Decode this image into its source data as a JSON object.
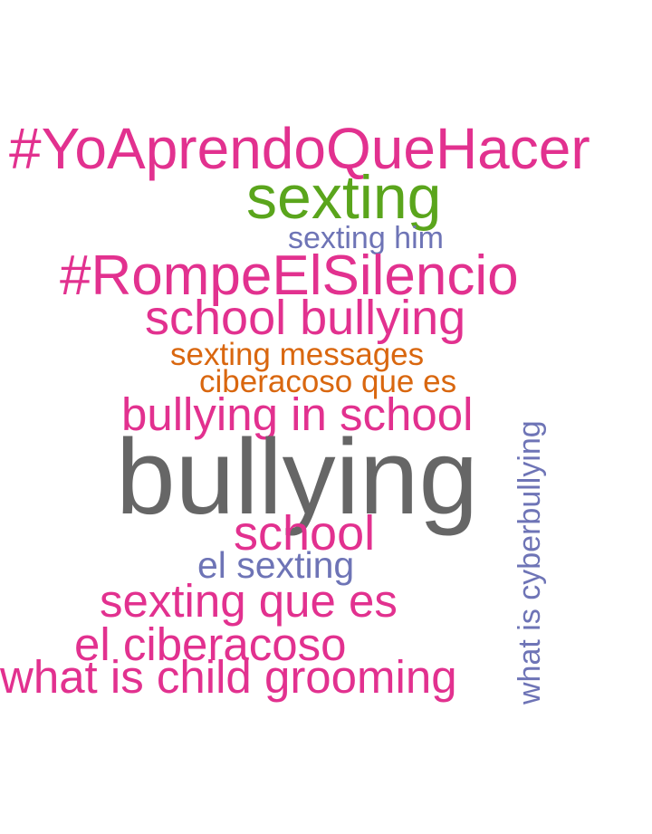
{
  "word_cloud": {
    "colors": {
      "pink": "#e2318f",
      "green": "#5aa51c",
      "slate": "#6e74b6",
      "orange": "#d9670f",
      "gray": "#666666"
    },
    "words": [
      {
        "text": "#YoAprendoQueHacer",
        "color": "#e2318f",
        "orientation": "horizontal"
      },
      {
        "text": "sexting",
        "color": "#5aa51c",
        "orientation": "horizontal"
      },
      {
        "text": "sexting him",
        "color": "#6e74b6",
        "orientation": "horizontal"
      },
      {
        "text": "#RompeElSilencio",
        "color": "#e2318f",
        "orientation": "horizontal"
      },
      {
        "text": "school bullying",
        "color": "#e2318f",
        "orientation": "horizontal"
      },
      {
        "text": "sexting messages",
        "color": "#d9670f",
        "orientation": "horizontal"
      },
      {
        "text": "ciberacoso que es",
        "color": "#d9670f",
        "orientation": "horizontal"
      },
      {
        "text": "bullying in school",
        "color": "#e2318f",
        "orientation": "horizontal"
      },
      {
        "text": "bullying",
        "color": "#666666",
        "orientation": "horizontal"
      },
      {
        "text": "school",
        "color": "#e2318f",
        "orientation": "horizontal"
      },
      {
        "text": "el sexting",
        "color": "#6e74b6",
        "orientation": "horizontal"
      },
      {
        "text": "sexting que es",
        "color": "#e2318f",
        "orientation": "horizontal"
      },
      {
        "text": "el ciberacoso",
        "color": "#e2318f",
        "orientation": "horizontal"
      },
      {
        "text": "what is child grooming",
        "color": "#e2318f",
        "orientation": "horizontal"
      },
      {
        "text": "what is cyberbullying",
        "color": "#6e74b6",
        "orientation": "vertical"
      }
    ]
  }
}
